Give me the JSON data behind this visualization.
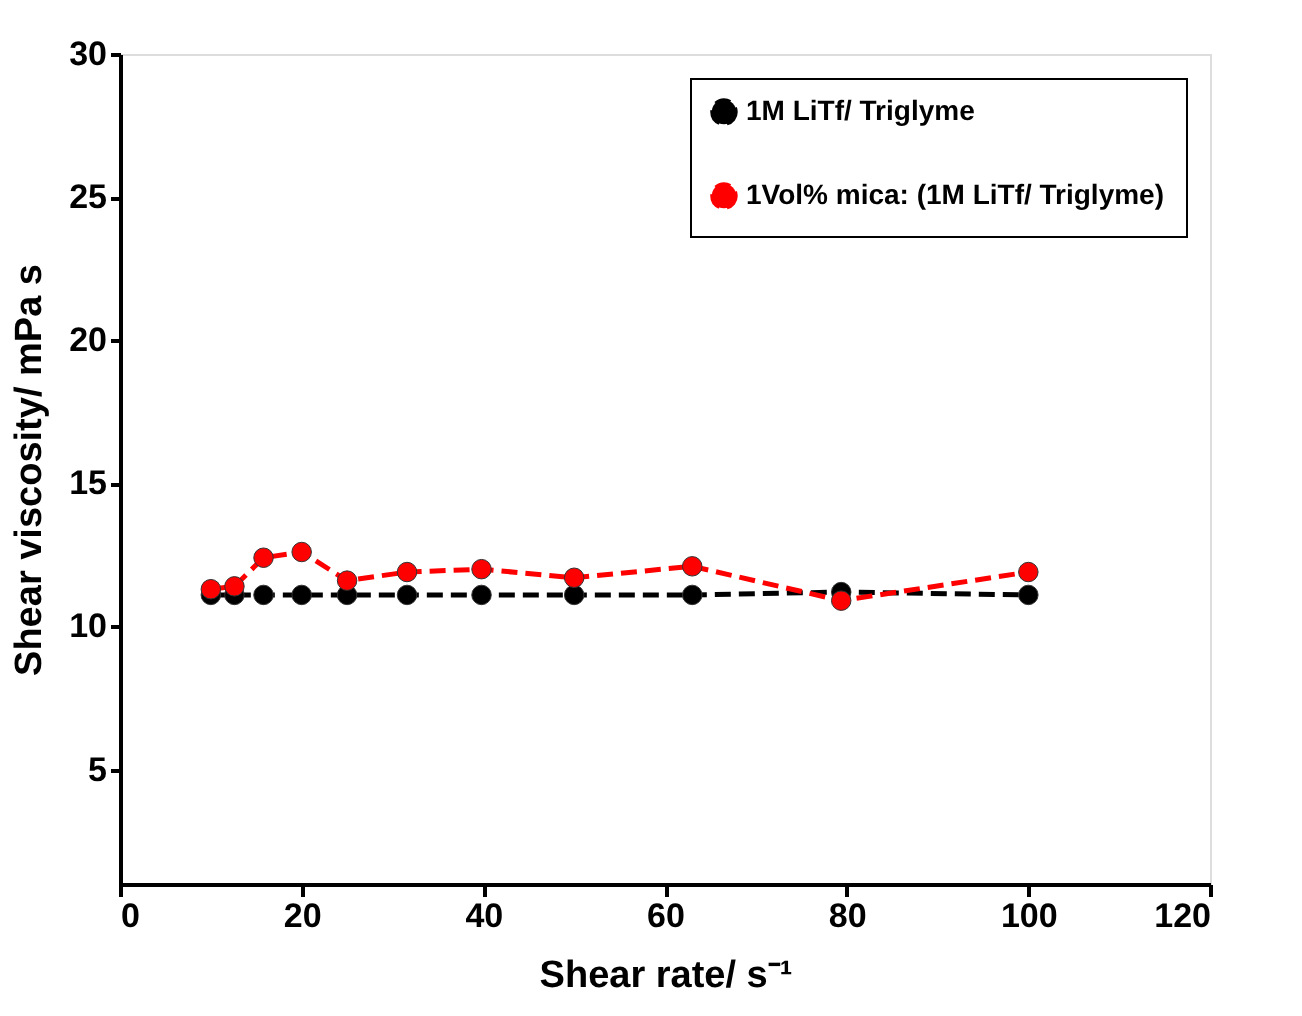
{
  "chart_data": {
    "type": "line",
    "xlabel": "Shear rate/ s⁻¹",
    "ylabel": "Shear viscosity/ mPa s",
    "xlim": [
      0,
      120
    ],
    "xticks": [
      0,
      20,
      40,
      60,
      80,
      100,
      120
    ],
    "ylim": [
      1,
      30
    ],
    "yticks": [
      5,
      10,
      15,
      20,
      25,
      30
    ],
    "x": [
      10,
      12.6,
      15.8,
      20,
      25,
      31.6,
      39.8,
      50,
      63,
      79.4,
      100
    ],
    "grid": false,
    "legend": "top right",
    "marker": "circle",
    "line_style": "dashed",
    "series": [
      {
        "name": "1M LiTf/ Triglyme",
        "color": "#000000",
        "values": [
          11.1,
          11.1,
          11.1,
          11.1,
          11.1,
          11.1,
          11.1,
          11.1,
          11.1,
          11.2,
          11.1
        ]
      },
      {
        "name": "1Vol% mica: (1M LiTf/ Triglyme)",
        "color": "#ff0000",
        "values": [
          11.3,
          11.4,
          12.4,
          12.6,
          11.6,
          11.9,
          12.0,
          11.7,
          12.1,
          10.9,
          11.9
        ]
      }
    ]
  }
}
